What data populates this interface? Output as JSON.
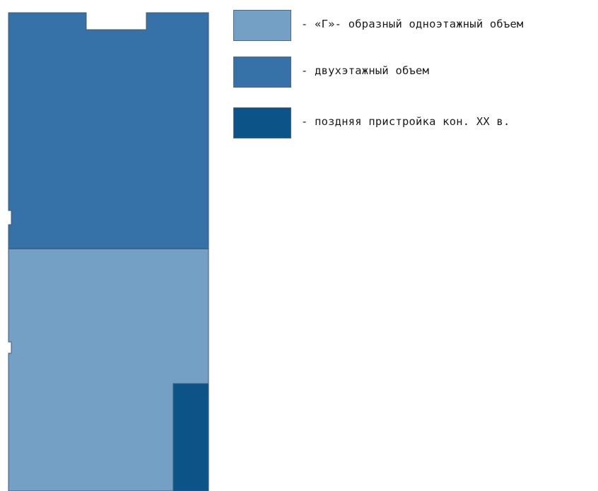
{
  "colors": {
    "one_storey": "#74a0c6",
    "two_storey": "#3671a7",
    "late_extension": "#0c5488",
    "outline": "#3c5a78"
  },
  "legend": [
    {
      "label": "- «Г»- образный одноэтажный объем",
      "color": "#74a0c6"
    },
    {
      "label": "- двухэтажный объем",
      "color": "#3671a7"
    },
    {
      "label": "- поздняя пристройка кон. XX в.",
      "color": "#0c5488"
    }
  ]
}
